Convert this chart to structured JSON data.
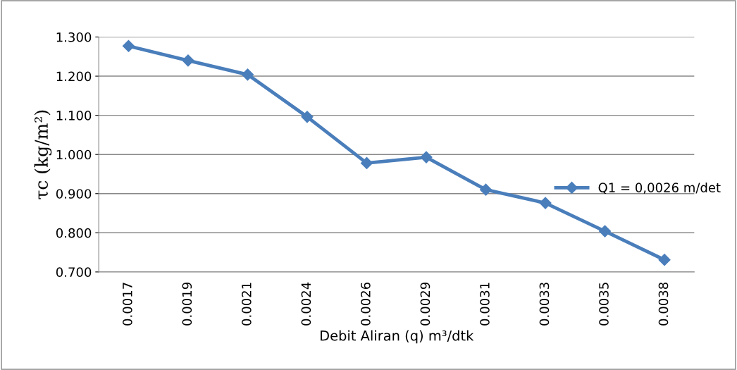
{
  "chart_data": {
    "type": "line",
    "xlabel": "Debit Aliran (q) m³/dtk",
    "ylabel": "τc (kg/m²)",
    "categories": [
      "0.0017",
      "0.0019",
      "0.0021",
      "0.0024",
      "0.0026",
      "0.0029",
      "0.0031",
      "0.0033",
      "0.0035",
      "0.0038"
    ],
    "series": [
      {
        "name": "Q1 = 0,0026 m/det",
        "color": "#4a7ebb",
        "values": [
          1.277,
          1.24,
          1.204,
          1.096,
          0.978,
          0.993,
          0.91,
          0.876,
          0.804,
          0.731
        ]
      }
    ],
    "ylim": [
      0.7,
      1.3
    ],
    "yticks": [
      {
        "value": 0.7,
        "label": "0.700"
      },
      {
        "value": 0.8,
        "label": "0.800"
      },
      {
        "value": 0.9,
        "label": "0.900"
      },
      {
        "value": 1.0,
        "label": "1.000"
      },
      {
        "value": 1.1,
        "label": "1.100"
      },
      {
        "value": 1.2,
        "label": "1.200"
      },
      {
        "value": 1.3,
        "label": "1.300"
      }
    ],
    "grid": "y",
    "legend": "right",
    "marker": "diamond",
    "line_style": "solid"
  }
}
